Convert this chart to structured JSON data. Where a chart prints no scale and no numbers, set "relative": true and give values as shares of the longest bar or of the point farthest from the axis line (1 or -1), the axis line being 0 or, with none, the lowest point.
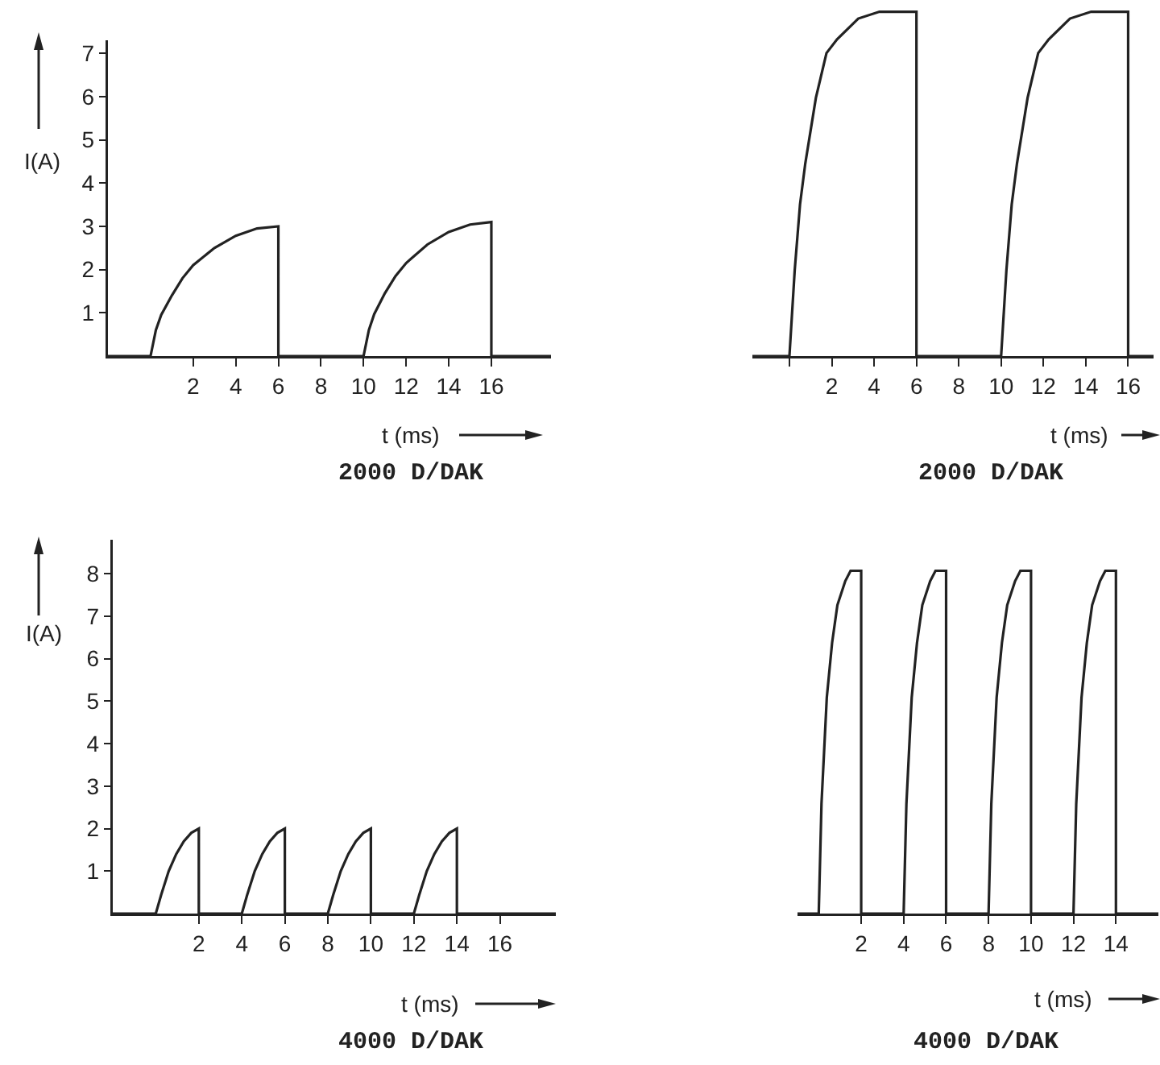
{
  "chart_data": [
    {
      "type": "line",
      "title": "2000 D/DAK",
      "xlabel": "t (ms)",
      "ylabel": "I(A)",
      "color": "#222222",
      "xlim": [
        -2,
        18.8
      ],
      "xticks": [
        2,
        4,
        6,
        8,
        10,
        12,
        14,
        16
      ],
      "ylim": [
        0,
        7.3
      ],
      "yticks": [
        1,
        2,
        3,
        4,
        5,
        6,
        7
      ],
      "x": [
        -2,
        0,
        0.25,
        0.5,
        1,
        1.5,
        2,
        3,
        4,
        5,
        6,
        6,
        10,
        10.25,
        10.5,
        11,
        11.5,
        12,
        13,
        14,
        15,
        16,
        16,
        18.8
      ],
      "values": [
        0,
        0,
        0.6,
        0.95,
        1.4,
        1.8,
        2.1,
        2.5,
        2.78,
        2.95,
        3.0,
        0,
        0,
        0.6,
        0.97,
        1.45,
        1.85,
        2.15,
        2.58,
        2.87,
        3.04,
        3.1,
        0,
        0
      ]
    },
    {
      "type": "line",
      "title": "2000 D/DAK",
      "xlabel": "t (ms)",
      "relative": true,
      "color": "#222222",
      "xlim": [
        -1.75,
        17.2
      ],
      "xticks": [
        {
          "value": 0,
          "label": null
        },
        2,
        4,
        6,
        8,
        10,
        12,
        14,
        16
      ],
      "x": [
        -1.75,
        0,
        0.25,
        0.5,
        0.75,
        1.25,
        1.75,
        2.25,
        3.25,
        4.25,
        6,
        6,
        10,
        10.25,
        10.5,
        10.75,
        11.25,
        11.75,
        12.25,
        13.25,
        14.25,
        16,
        16,
        17.2
      ],
      "values": [
        0,
        0,
        0.25,
        0.44,
        0.56,
        0.75,
        0.88,
        0.92,
        0.98,
        1,
        1,
        0,
        0,
        0.25,
        0.44,
        0.56,
        0.75,
        0.88,
        0.92,
        0.98,
        1,
        1,
        0,
        0
      ]
    },
    {
      "type": "line",
      "title": "4000 D/DAK",
      "xlabel": "t (ms)",
      "ylabel": "I(A)",
      "color": "#222222",
      "xlim": [
        -2,
        18.6
      ],
      "xticks": [
        2,
        4,
        6,
        8,
        10,
        12,
        14,
        16
      ],
      "ylim": [
        0,
        8.8
      ],
      "yticks": [
        1,
        2,
        3,
        4,
        5,
        6,
        7,
        8
      ],
      "x": [
        -2,
        0,
        0.25,
        0.6,
        0.95,
        1.3,
        1.65,
        2,
        2,
        4,
        4.25,
        4.6,
        4.95,
        5.3,
        5.65,
        6,
        6,
        8,
        8.25,
        8.6,
        8.95,
        9.3,
        9.65,
        10,
        10,
        12,
        12.25,
        12.6,
        12.95,
        13.3,
        13.65,
        14,
        14,
        18.6
      ],
      "values": [
        0,
        0,
        0.44,
        1.0,
        1.4,
        1.7,
        1.9,
        2.0,
        0,
        0,
        0.44,
        1.0,
        1.4,
        1.7,
        1.9,
        2.0,
        0,
        0,
        0.44,
        1.0,
        1.4,
        1.7,
        1.9,
        2.0,
        0,
        0,
        0.44,
        1.0,
        1.4,
        1.7,
        1.9,
        2.0,
        0,
        0
      ]
    },
    {
      "type": "line",
      "title": "4000 D/DAK",
      "xlabel": "t (ms)",
      "relative": true,
      "color": "#222222",
      "xlim": [
        -1,
        16
      ],
      "xticks": [
        2,
        4,
        6,
        8,
        10,
        12,
        14
      ],
      "x": [
        -1,
        0,
        0.13,
        0.38,
        0.63,
        0.88,
        1.25,
        1.5,
        2,
        2,
        4,
        4.13,
        4.38,
        4.63,
        4.88,
        5.25,
        5.5,
        6,
        6,
        8,
        8.13,
        8.38,
        8.63,
        8.88,
        9.25,
        9.5,
        10,
        10,
        12,
        12.13,
        12.38,
        12.63,
        12.88,
        13.25,
        13.5,
        14,
        14,
        16
      ],
      "values": [
        0,
        0,
        0.32,
        0.63,
        0.79,
        0.9,
        0.97,
        1,
        1,
        0,
        0,
        0.32,
        0.63,
        0.79,
        0.9,
        0.97,
        1,
        1,
        0,
        0,
        0.32,
        0.63,
        0.79,
        0.9,
        0.97,
        1,
        1,
        0,
        0,
        0.32,
        0.63,
        0.79,
        0.9,
        0.97,
        1,
        1,
        0,
        0
      ]
    }
  ]
}
